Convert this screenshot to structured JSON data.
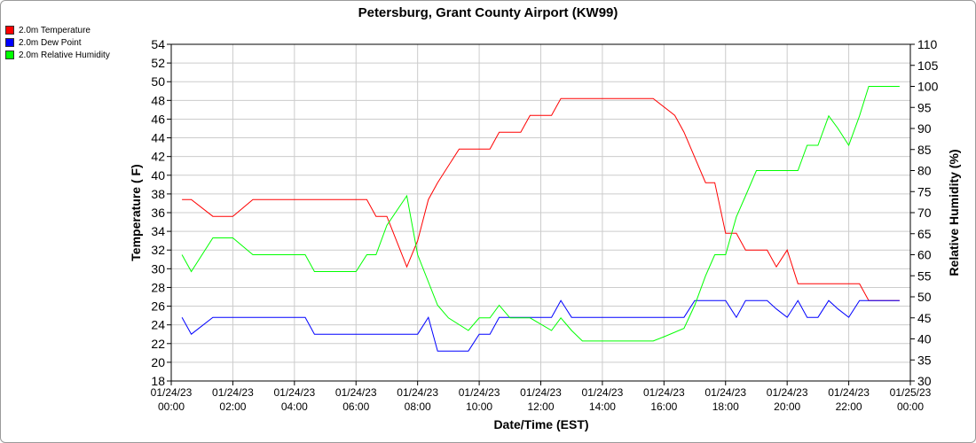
{
  "chart_data": {
    "type": "line",
    "title": "Petersburg, Grant County Airport (KW99)",
    "xlabel": "Date/Time (EST)",
    "ylabel_left": "Temperature ( F)",
    "ylabel_right": "Relative Humidity (%)",
    "x_range_hours": [
      0,
      24
    ],
    "x_ticks": [
      {
        "date": "01/24/23",
        "time": "00:00"
      },
      {
        "date": "01/24/23",
        "time": "02:00"
      },
      {
        "date": "01/24/23",
        "time": "04:00"
      },
      {
        "date": "01/24/23",
        "time": "06:00"
      },
      {
        "date": "01/24/23",
        "time": "08:00"
      },
      {
        "date": "01/24/23",
        "time": "10:00"
      },
      {
        "date": "01/24/23",
        "time": "12:00"
      },
      {
        "date": "01/24/23",
        "time": "14:00"
      },
      {
        "date": "01/24/23",
        "time": "16:00"
      },
      {
        "date": "01/24/23",
        "time": "18:00"
      },
      {
        "date": "01/24/23",
        "time": "20:00"
      },
      {
        "date": "01/24/23",
        "time": "22:00"
      },
      {
        "date": "01/25/23",
        "time": "00:00"
      }
    ],
    "y_left": {
      "min": 18,
      "max": 54,
      "step": 2
    },
    "y_right": {
      "min": 30,
      "max": 110,
      "step": 5
    },
    "grid": true,
    "legend_position": "top-left",
    "series": [
      {
        "name": "2.0m Temperature",
        "axis": "left",
        "color": "#ff0000",
        "x": [
          0.35,
          0.65,
          1.35,
          2.0,
          2.65,
          3.0,
          3.65,
          4.0,
          4.65,
          5.0,
          5.65,
          6.0,
          6.35,
          6.65,
          7.0,
          7.65,
          8.0,
          8.35,
          8.65,
          9.35,
          9.65,
          10.35,
          10.65,
          11.35,
          11.65,
          12.35,
          12.65,
          13.35,
          13.65,
          14.35,
          14.65,
          15.35,
          15.65,
          16.35,
          16.65,
          17.35,
          17.65,
          18.0,
          18.35,
          18.65,
          19.35,
          19.65,
          20.0,
          20.35,
          20.65,
          21.35,
          21.65,
          22.35,
          22.65,
          23.35,
          23.65
        ],
        "values": [
          37.4,
          37.4,
          35.6,
          35.6,
          37.4,
          37.4,
          37.4,
          37.4,
          37.4,
          37.4,
          37.4,
          37.4,
          37.4,
          35.6,
          35.6,
          30.2,
          33.0,
          37.4,
          39.2,
          42.8,
          42.8,
          42.8,
          44.6,
          44.6,
          46.4,
          46.4,
          48.2,
          48.2,
          48.2,
          48.2,
          48.2,
          48.2,
          48.2,
          46.4,
          44.6,
          39.2,
          39.2,
          33.8,
          33.8,
          32.0,
          32.0,
          30.2,
          32.0,
          28.4,
          28.4,
          28.4,
          28.4,
          28.4,
          26.6,
          26.6,
          26.6
        ]
      },
      {
        "name": "2.0m Dew Point",
        "axis": "left",
        "color": "#0000ff",
        "x": [
          0.35,
          0.65,
          1.35,
          2.0,
          3.0,
          4.0,
          4.35,
          4.65,
          5.0,
          6.0,
          7.0,
          7.65,
          8.0,
          8.35,
          8.65,
          9.0,
          9.65,
          10.0,
          10.35,
          10.65,
          11.0,
          11.35,
          11.65,
          12.35,
          12.65,
          13.0,
          13.35,
          14.0,
          15.0,
          16.0,
          16.65,
          17.0,
          17.35,
          17.65,
          18.0,
          18.35,
          18.65,
          19.0,
          19.35,
          19.65,
          20.0,
          20.35,
          20.65,
          21.0,
          21.35,
          21.65,
          22.0,
          22.35,
          22.65,
          23.0,
          23.35,
          23.65
        ],
        "values": [
          24.8,
          23.0,
          24.8,
          24.8,
          24.8,
          24.8,
          24.8,
          23.0,
          23.0,
          23.0,
          23.0,
          23.0,
          23.0,
          24.8,
          21.2,
          21.2,
          21.2,
          23.0,
          23.0,
          24.8,
          24.8,
          24.8,
          24.8,
          24.8,
          26.6,
          24.8,
          24.8,
          24.8,
          24.8,
          24.8,
          24.8,
          26.6,
          26.6,
          26.6,
          26.6,
          24.8,
          26.6,
          26.6,
          26.6,
          25.7,
          24.8,
          26.6,
          24.8,
          24.8,
          26.6,
          25.7,
          24.8,
          26.6,
          26.6,
          26.6,
          26.6,
          26.6
        ]
      },
      {
        "name": "2.0m Relative Humidity",
        "axis": "right",
        "color": "#00ff00",
        "x": [
          0.35,
          0.65,
          1.35,
          2.0,
          2.65,
          3.0,
          4.0,
          4.35,
          4.65,
          5.0,
          5.65,
          6.0,
          6.35,
          6.65,
          7.0,
          7.65,
          8.0,
          8.65,
          9.0,
          9.65,
          10.0,
          10.35,
          10.65,
          11.0,
          11.35,
          11.65,
          12.35,
          12.65,
          13.0,
          13.35,
          14.0,
          15.0,
          15.65,
          16.0,
          16.65,
          17.0,
          17.35,
          17.65,
          18.0,
          18.35,
          18.65,
          19.0,
          19.35,
          19.65,
          20.0,
          20.35,
          20.65,
          21.0,
          21.35,
          21.65,
          22.0,
          22.35,
          22.65,
          23.0,
          23.35,
          23.65
        ],
        "values": [
          60.0,
          56.0,
          64.0,
          64.0,
          60.0,
          60.0,
          60.0,
          60.0,
          56.0,
          56.0,
          56.0,
          56.0,
          60.0,
          60.0,
          67.0,
          74.0,
          60.0,
          48.0,
          45.0,
          42.0,
          45.0,
          45.0,
          48.0,
          45.0,
          45.0,
          45.0,
          42.0,
          45.0,
          42.0,
          39.5,
          39.5,
          39.5,
          39.5,
          40.5,
          42.5,
          48.0,
          55.0,
          60.0,
          60.0,
          69.0,
          74.0,
          80.0,
          80.0,
          80.0,
          80.0,
          80.0,
          86.0,
          86.0,
          93.0,
          90.0,
          86.0,
          93.0,
          100.0,
          100.0,
          100.0,
          100.0
        ]
      }
    ]
  }
}
